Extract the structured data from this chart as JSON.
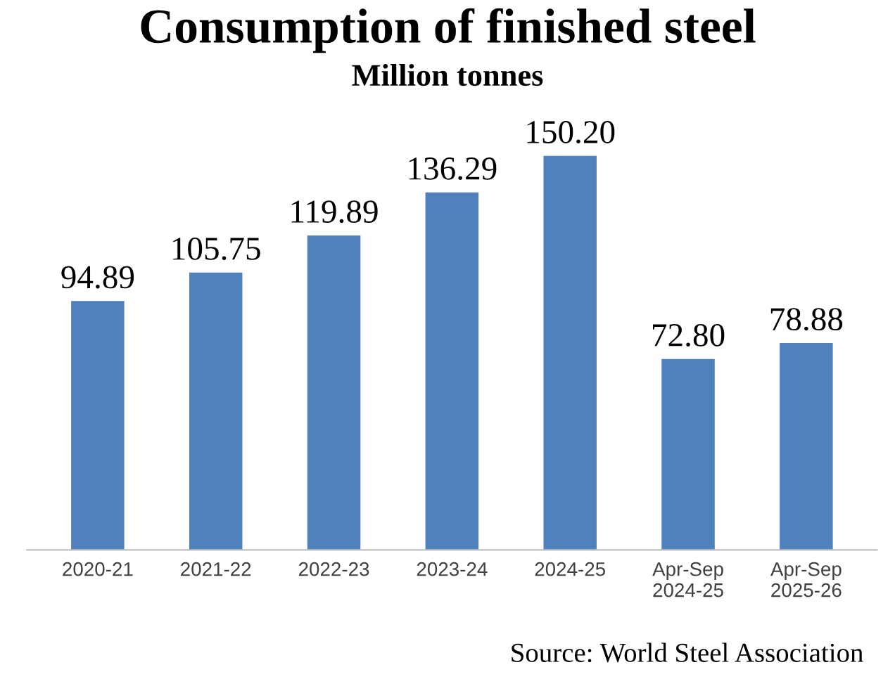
{
  "chart_data": {
    "type": "bar",
    "title": "Consumption of finished steel",
    "subtitle": "Million tonnes",
    "categories": [
      "2020-21",
      "2021-22",
      "2022-23",
      "2023-24",
      "2024-25",
      "Apr-Sep\n2024-25",
      "Apr-Sep\n2025-26"
    ],
    "values": [
      94.89,
      105.75,
      119.89,
      136.29,
      150.2,
      72.8,
      78.88
    ],
    "value_labels": [
      "94.89",
      "105.75",
      "119.89",
      "136.29",
      "150.20",
      "72.80",
      "78.88"
    ],
    "color": "#4f81bd",
    "grid": false,
    "legend": false,
    "annotations": [
      "Source: World Steel Association"
    ]
  }
}
